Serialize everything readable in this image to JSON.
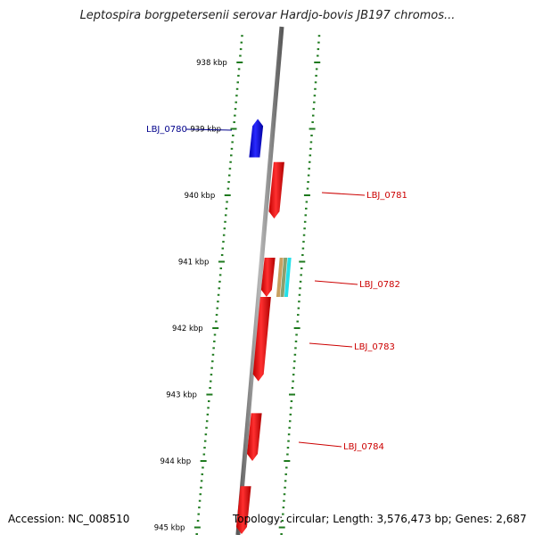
{
  "title": "Leptospira borgpetersenii serovar Hardjo-bovis JB197 chromos...",
  "footer": {
    "accession": "Accession: NC_008510",
    "summary": "Topology: circular; Length: 3,576,473 bp; Genes: 2,687"
  },
  "colors": {
    "backbone": "#8a8a8a",
    "tick": "#1e7a1e",
    "forward_gene": "#0a0aee",
    "reverse_gene": "#ee1111",
    "forward_label": "#00008b",
    "reverse_label": "#cc0000",
    "feature_tan": "#c8a060",
    "feature_olive": "#88a070",
    "feature_cyan": "#22e0e8"
  },
  "scale": {
    "unit": "kbp",
    "labels": [
      "938 kbp",
      "939 kbp",
      "940 kbp",
      "941 kbp",
      "942 kbp",
      "943 kbp",
      "944 kbp",
      "945 kbp"
    ],
    "label_positions_kbp": [
      938,
      939,
      940,
      941,
      942,
      943,
      944,
      945
    ],
    "minor_step_kbp": 0.1
  },
  "genes": [
    {
      "id": "LBJ_0780",
      "label": "LBJ_0780",
      "start_kbp": 938.85,
      "end_kbp": 939.43,
      "strand": "forward"
    },
    {
      "id": "LBJ_0781",
      "label": "LBJ_0781",
      "start_kbp": 939.5,
      "end_kbp": 940.35,
      "strand": "reverse"
    },
    {
      "id": "LBJ_0782",
      "label": "LBJ_0782",
      "start_kbp": 940.94,
      "end_kbp": 941.53,
      "strand": "reverse"
    },
    {
      "id": "LBJ_0783",
      "label": "LBJ_0783",
      "start_kbp": 941.53,
      "end_kbp": 942.8,
      "strand": "reverse"
    },
    {
      "id": "LBJ_0784",
      "label": "LBJ_0784",
      "start_kbp": 943.28,
      "end_kbp": 944.0,
      "strand": "reverse"
    },
    {
      "id": "next",
      "label": "",
      "start_kbp": 944.38,
      "end_kbp": 945.1,
      "strand": "reverse"
    }
  ],
  "features": [
    {
      "start_kbp": 940.94,
      "end_kbp": 941.53,
      "color": "feature_tan"
    },
    {
      "start_kbp": 940.94,
      "end_kbp": 941.53,
      "color": "feature_olive"
    },
    {
      "start_kbp": 940.94,
      "end_kbp": 941.53,
      "color": "feature_cyan"
    }
  ]
}
